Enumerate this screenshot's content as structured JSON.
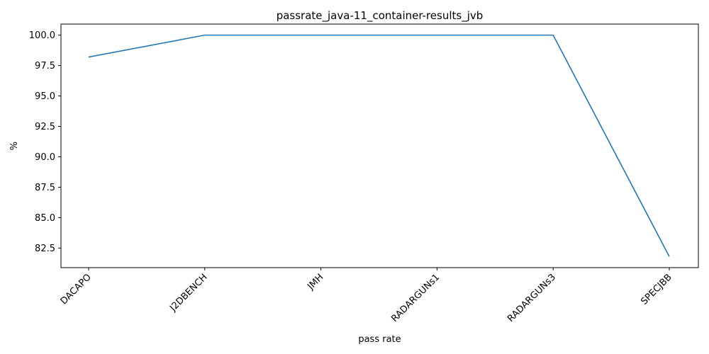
{
  "chart_data": {
    "type": "line",
    "title": "passrate_java-11_container-results_jvb",
    "xlabel": "pass rate",
    "ylabel": "%",
    "categories": [
      "DACAPO",
      "J2DBENCH",
      "JMH",
      "RADARGUNs1",
      "RADARGUNs3",
      "SPECJBB"
    ],
    "series": [
      {
        "values": [
          98.2,
          100.0,
          100.0,
          100.0,
          100.0,
          81.8
        ],
        "color": "#1f77b4"
      }
    ],
    "yticks": [
      "82.5",
      "85.0",
      "87.5",
      "90.0",
      "92.5",
      "95.0",
      "97.5",
      "100.0"
    ],
    "ylim": [
      80.89,
      100.91
    ],
    "grid": false,
    "legend": "none"
  }
}
